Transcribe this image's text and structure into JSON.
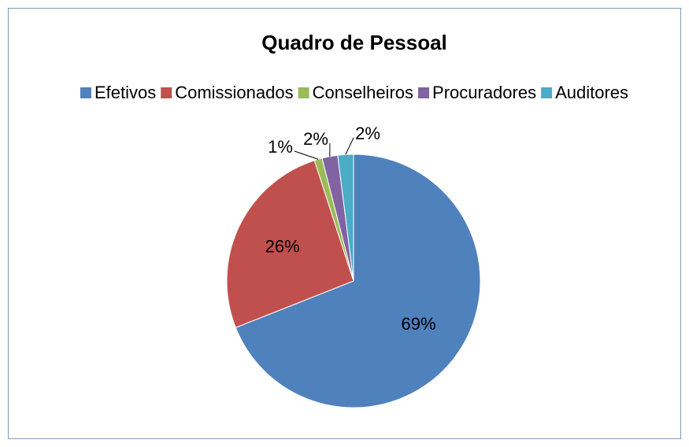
{
  "chart_data": {
    "type": "pie",
    "title": "Quadro de Pessoal",
    "categories": [
      "Efetivos",
      "Comissionados",
      "Conselheiros",
      "Procuradores",
      "Auditores"
    ],
    "values": [
      69,
      26,
      1,
      2,
      2
    ],
    "value_labels": [
      "69%",
      "26%",
      "1%",
      "2%",
      "2%"
    ],
    "colors": [
      "#4f81bd",
      "#c0504d",
      "#9bbb59",
      "#8064a2",
      "#4bacc6"
    ],
    "legend": "top"
  }
}
